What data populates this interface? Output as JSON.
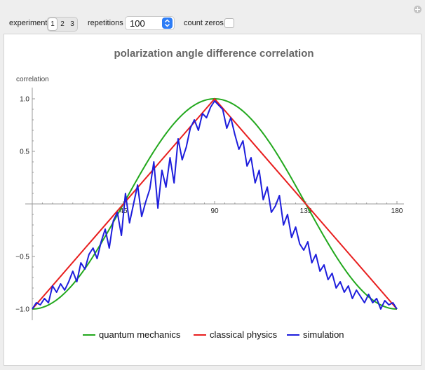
{
  "controls": {
    "experiment_label": "experiment",
    "experiment_options": [
      "1",
      "2",
      "3"
    ],
    "experiment_selected": "1",
    "repetitions_label": "repetitions",
    "repetitions_value": "100",
    "count_zeros_label": "count zeros",
    "count_zeros_checked": false
  },
  "chart_data": {
    "type": "line",
    "title": "polarization angle difference correlation",
    "ylabel": "correlation",
    "xlabel": "",
    "xlim": [
      0,
      180
    ],
    "ylim": [
      -1,
      1
    ],
    "x_ticks": [
      45,
      90,
      135,
      180
    ],
    "y_ticks": [
      -1.0,
      -0.5,
      0.5,
      1.0
    ],
    "x_tick_labels": [
      "45",
      "90",
      "135",
      "180"
    ],
    "y_tick_labels": [
      "−1.0",
      "−0.5",
      "0.5",
      "1.0"
    ],
    "legend_position": "bottom",
    "series": [
      {
        "name": "quantum mechanics",
        "color": "#22a81d",
        "function": "cos_2x",
        "points": 181
      },
      {
        "name": "classical physics",
        "color": "#e81e1e",
        "x": [
          0,
          90,
          180
        ],
        "values": [
          -1,
          1,
          -1
        ]
      },
      {
        "name": "simulation",
        "color": "#1d1ddc",
        "x": [
          0,
          2,
          4,
          6,
          8,
          10,
          12,
          14,
          16,
          18,
          20,
          22,
          24,
          26,
          28,
          30,
          32,
          34,
          36,
          38,
          40,
          42,
          44,
          46,
          48,
          50,
          52,
          54,
          56,
          58,
          60,
          62,
          64,
          66,
          68,
          70,
          72,
          74,
          76,
          78,
          80,
          82,
          84,
          86,
          88,
          90,
          92,
          94,
          96,
          98,
          100,
          102,
          104,
          106,
          108,
          110,
          112,
          114,
          116,
          118,
          120,
          122,
          124,
          126,
          128,
          130,
          132,
          134,
          136,
          138,
          140,
          142,
          144,
          146,
          148,
          150,
          152,
          154,
          156,
          158,
          160,
          162,
          164,
          166,
          168,
          170,
          172,
          174,
          176,
          178,
          180
        ],
        "values": [
          -1.0,
          -0.94,
          -0.96,
          -0.9,
          -0.94,
          -0.78,
          -0.84,
          -0.76,
          -0.82,
          -0.74,
          -0.64,
          -0.74,
          -0.56,
          -0.62,
          -0.48,
          -0.42,
          -0.52,
          -0.36,
          -0.24,
          -0.42,
          -0.16,
          -0.08,
          -0.3,
          0.1,
          -0.18,
          0.0,
          0.18,
          -0.12,
          0.02,
          0.14,
          0.4,
          -0.04,
          0.32,
          0.16,
          0.44,
          0.2,
          0.62,
          0.42,
          0.54,
          0.72,
          0.8,
          0.7,
          0.86,
          0.82,
          0.92,
          0.98,
          0.94,
          0.9,
          0.72,
          0.82,
          0.66,
          0.52,
          0.6,
          0.36,
          0.44,
          0.2,
          0.32,
          0.04,
          0.16,
          -0.08,
          -0.02,
          0.08,
          -0.2,
          -0.1,
          -0.32,
          -0.22,
          -0.38,
          -0.44,
          -0.36,
          -0.56,
          -0.48,
          -0.64,
          -0.58,
          -0.72,
          -0.66,
          -0.8,
          -0.74,
          -0.84,
          -0.78,
          -0.9,
          -0.82,
          -0.88,
          -0.94,
          -0.86,
          -0.94,
          -0.9,
          -1.0,
          -0.92,
          -0.96,
          -0.94,
          -1.0
        ]
      }
    ]
  }
}
